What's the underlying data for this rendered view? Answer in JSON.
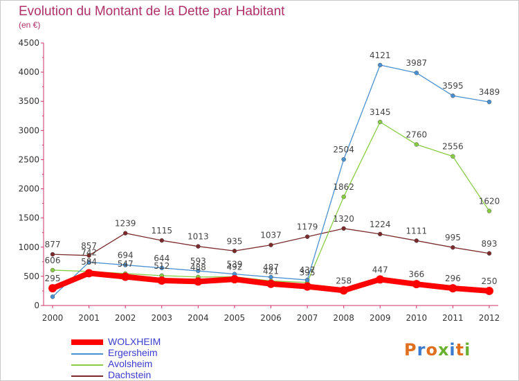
{
  "header": {
    "title": "Evolution du Montant de la Dette par Habitant",
    "subtitle": "(en €)"
  },
  "logo": {
    "text": "Proxiti",
    "colors": [
      "#e07020",
      "#3a7ad0",
      "#e07020",
      "#6ab030",
      "#3a7ad0",
      "#e07020",
      "#6ab030"
    ]
  },
  "chart_data": {
    "type": "line",
    "title": "Evolution du Montant de la Dette par Habitant",
    "subtitle": "(en €)",
    "xlabel": "",
    "ylabel": "",
    "ylim": [
      0,
      4500
    ],
    "yticks": [
      "0",
      "500",
      "1000",
      "1500",
      "2000",
      "2500",
      "3000",
      "3500",
      "4000",
      "4500"
    ],
    "x": [
      "2000",
      "2001",
      "2002",
      "2003",
      "2004",
      "2005",
      "2006",
      "2007",
      "2008",
      "2009",
      "2010",
      "2011",
      "2012"
    ],
    "grid": false,
    "legend_position": "bottom-left",
    "series": [
      {
        "name": "WOLXHEIM",
        "color": "#ff0000",
        "values": [
          295,
          554,
          493,
          428,
          411,
          450,
          371,
          325,
          258,
          447,
          366,
          296,
          250
        ],
        "labels": [
          "295",
          "",
          "",
          "",
          "",
          "",
          "",
          "",
          "258",
          "447",
          "366",
          "296",
          "250"
        ]
      },
      {
        "name": "Ergersheim",
        "color": "#4a90d0",
        "values": [
          150,
          742,
          694,
          644,
          593,
          539,
          487,
          437,
          2504,
          4121,
          3987,
          3595,
          3489
        ],
        "labels": [
          "",
          "742",
          "694",
          "644",
          "593",
          "539",
          "487",
          "437",
          "2504",
          "4121",
          "3987",
          "3595",
          "3489"
        ]
      },
      {
        "name": "Avolsheim",
        "color": "#88cc44",
        "values": [
          606,
          584,
          547,
          512,
          488,
          492,
          421,
          395,
          1862,
          3145,
          2760,
          2556,
          1620
        ],
        "labels": [
          "606",
          "584",
          "547",
          "512",
          "488",
          "492",
          "421",
          "395",
          "1862",
          "3145",
          "2760",
          "2556",
          "1620"
        ]
      },
      {
        "name": "Dachstein",
        "color": "#7a2a2a",
        "values": [
          877,
          857,
          1239,
          1115,
          1013,
          935,
          1037,
          1179,
          1320,
          1224,
          1111,
          995,
          893
        ],
        "labels": [
          "877",
          "857",
          "1239",
          "1115",
          "1013",
          "935",
          "1037",
          "1179",
          "1320",
          "1224",
          "1111",
          "995",
          "893"
        ]
      }
    ]
  }
}
